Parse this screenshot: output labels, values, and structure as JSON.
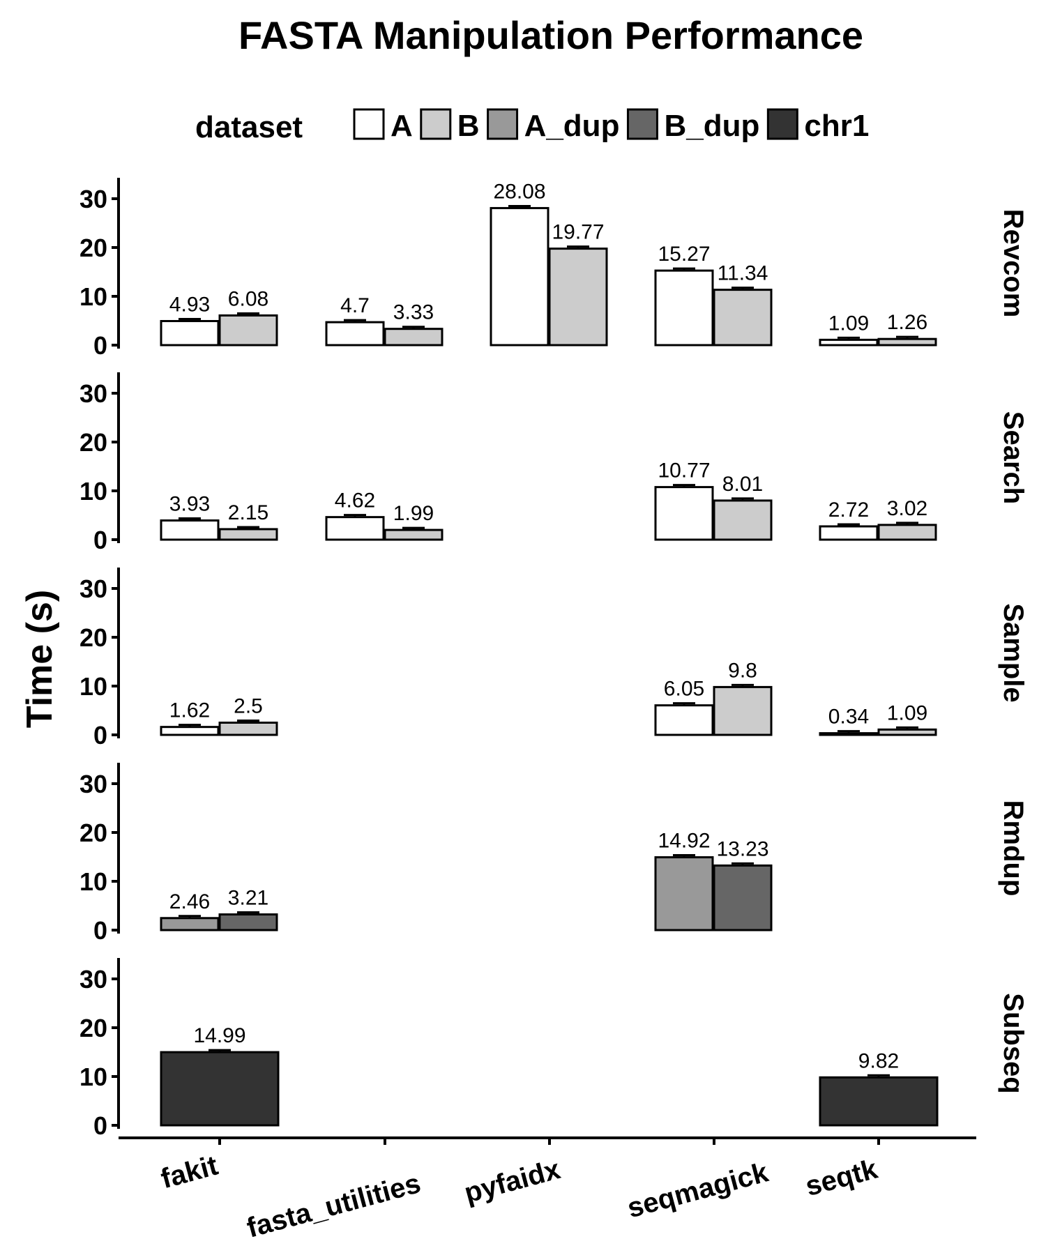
{
  "chart_data": {
    "type": "bar",
    "title": "FASTA Manipulation Performance",
    "ylabel": "Time (s)",
    "xlabel": "",
    "ylim": [
      0,
      35
    ],
    "yticks": [
      0,
      10,
      20,
      30
    ],
    "legend": {
      "title": "dataset",
      "placement": "top",
      "entries": [
        {
          "name": "A",
          "color": "#ffffff"
        },
        {
          "name": "B",
          "color": "#cccccc"
        },
        {
          "name": "A_dup",
          "color": "#999999"
        },
        {
          "name": "B_dup",
          "color": "#666666"
        },
        {
          "name": "chr1",
          "color": "#333333"
        }
      ]
    },
    "categories": [
      "fakit",
      "fasta_utilities",
      "pyfaidx",
      "seqmagick",
      "seqtk"
    ],
    "panels": [
      {
        "name": "Revcom",
        "bars": [
          {
            "tool": "fakit",
            "dataset": "A",
            "value": 4.93,
            "label": "4.93"
          },
          {
            "tool": "fakit",
            "dataset": "B",
            "value": 6.08,
            "label": "6.08"
          },
          {
            "tool": "fasta_utilities",
            "dataset": "A",
            "value": 4.7,
            "label": "4.7"
          },
          {
            "tool": "fasta_utilities",
            "dataset": "B",
            "value": 3.33,
            "label": "3.33"
          },
          {
            "tool": "pyfaidx",
            "dataset": "A",
            "value": 28.08,
            "label": "28.08"
          },
          {
            "tool": "pyfaidx",
            "dataset": "B",
            "value": 19.77,
            "label": "19.77"
          },
          {
            "tool": "seqmagick",
            "dataset": "A",
            "value": 15.27,
            "label": "15.27"
          },
          {
            "tool": "seqmagick",
            "dataset": "B",
            "value": 11.34,
            "label": "11.34"
          },
          {
            "tool": "seqtk",
            "dataset": "A",
            "value": 1.09,
            "label": "1.09"
          },
          {
            "tool": "seqtk",
            "dataset": "B",
            "value": 1.26,
            "label": "1.26"
          }
        ]
      },
      {
        "name": "Search",
        "bars": [
          {
            "tool": "fakit",
            "dataset": "A",
            "value": 3.93,
            "label": "3.93"
          },
          {
            "tool": "fakit",
            "dataset": "B",
            "value": 2.15,
            "label": "2.15"
          },
          {
            "tool": "fasta_utilities",
            "dataset": "A",
            "value": 4.62,
            "label": "4.62"
          },
          {
            "tool": "fasta_utilities",
            "dataset": "B",
            "value": 1.99,
            "label": "1.99"
          },
          {
            "tool": "seqmagick",
            "dataset": "A",
            "value": 10.77,
            "label": "10.77"
          },
          {
            "tool": "seqmagick",
            "dataset": "B",
            "value": 8.01,
            "label": "8.01"
          },
          {
            "tool": "seqtk",
            "dataset": "A",
            "value": 2.72,
            "label": "2.72"
          },
          {
            "tool": "seqtk",
            "dataset": "B",
            "value": 3.02,
            "label": "3.02"
          }
        ]
      },
      {
        "name": "Sample",
        "bars": [
          {
            "tool": "fakit",
            "dataset": "A",
            "value": 1.62,
            "label": "1.62"
          },
          {
            "tool": "fakit",
            "dataset": "B",
            "value": 2.5,
            "label": "2.5"
          },
          {
            "tool": "seqmagick",
            "dataset": "A",
            "value": 6.05,
            "label": "6.05"
          },
          {
            "tool": "seqmagick",
            "dataset": "B",
            "value": 9.8,
            "label": "9.8"
          },
          {
            "tool": "seqtk",
            "dataset": "A",
            "value": 0.34,
            "label": "0.34"
          },
          {
            "tool": "seqtk",
            "dataset": "B",
            "value": 1.09,
            "label": "1.09"
          }
        ]
      },
      {
        "name": "Rmdup",
        "bars": [
          {
            "tool": "fakit",
            "dataset": "A_dup",
            "value": 2.46,
            "label": "2.46"
          },
          {
            "tool": "fakit",
            "dataset": "B_dup",
            "value": 3.21,
            "label": "3.21"
          },
          {
            "tool": "seqmagick",
            "dataset": "A_dup",
            "value": 14.92,
            "label": "14.92"
          },
          {
            "tool": "seqmagick",
            "dataset": "B_dup",
            "value": 13.23,
            "label": "13.23"
          }
        ]
      },
      {
        "name": "Subseq",
        "bars": [
          {
            "tool": "fakit",
            "dataset": "chr1",
            "value": 14.99,
            "label": "14.99"
          },
          {
            "tool": "seqtk",
            "dataset": "chr1",
            "value": 9.82,
            "label": "9.82"
          }
        ]
      }
    ]
  }
}
